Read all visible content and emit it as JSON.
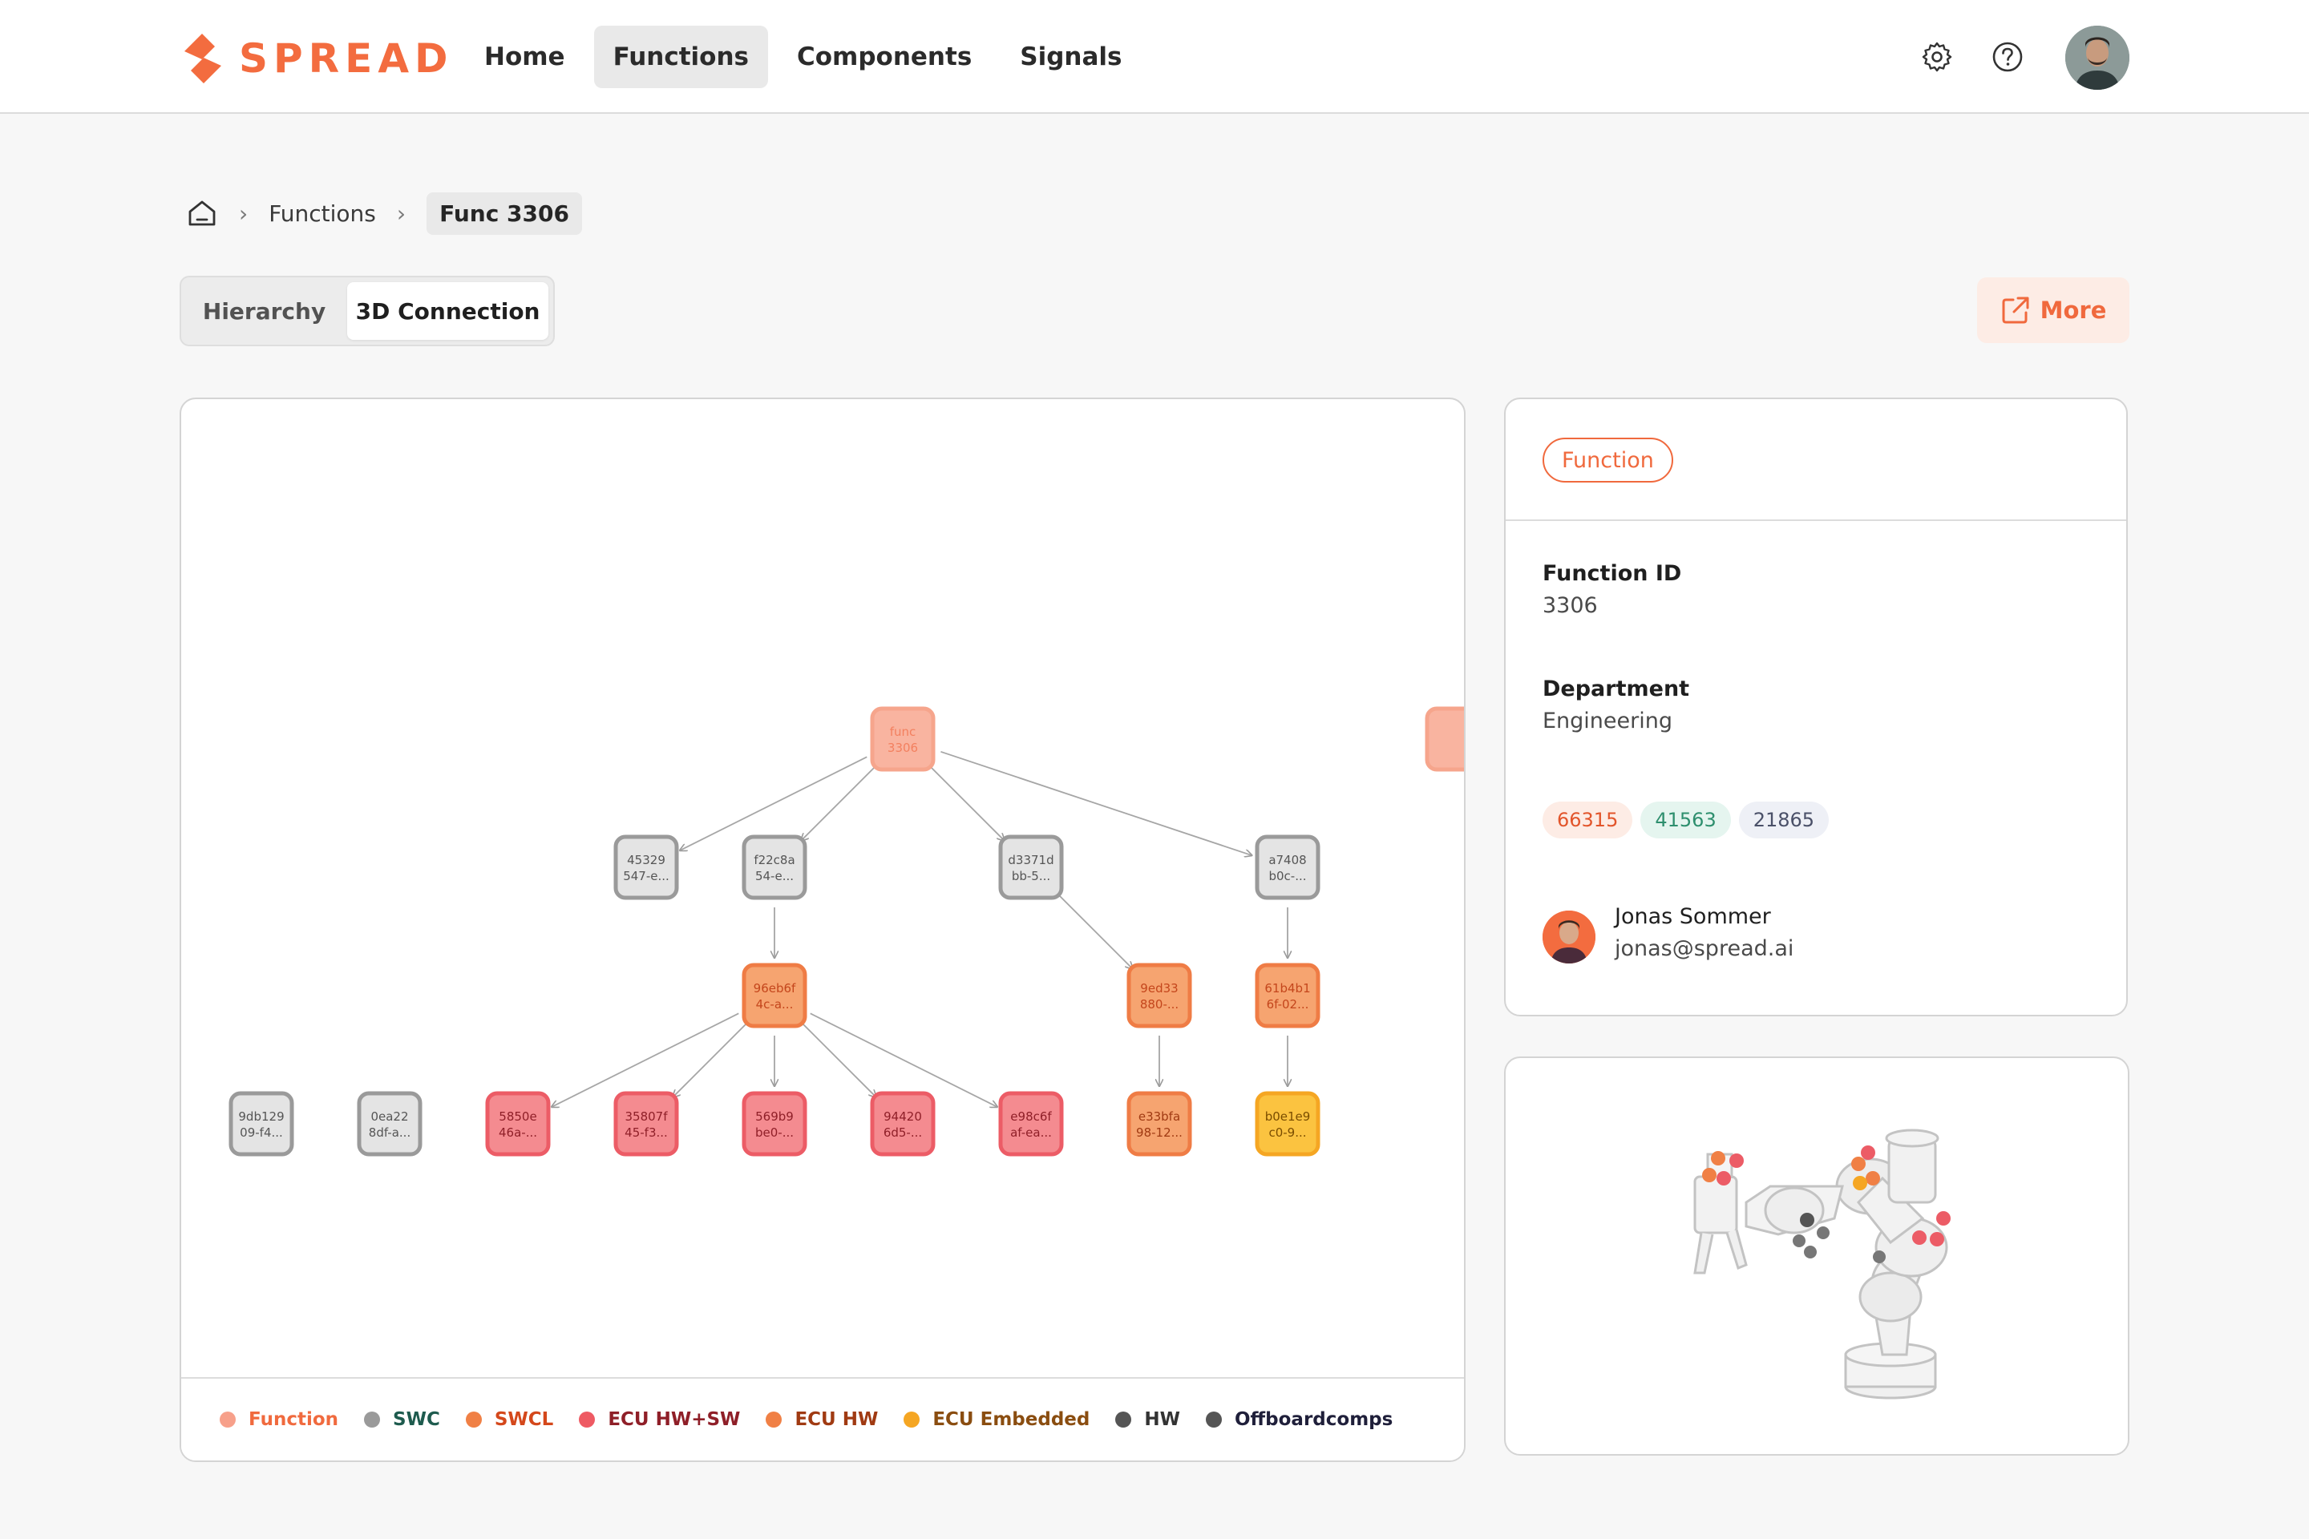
{
  "brand": {
    "name": "SPREAD",
    "accent": "#f36c3f"
  },
  "nav": {
    "items": [
      {
        "label": "Home",
        "active": false
      },
      {
        "label": "Functions",
        "active": true
      },
      {
        "label": "Components",
        "active": false
      },
      {
        "label": "Signals",
        "active": false
      }
    ],
    "icons": [
      "gear-icon",
      "help-icon",
      "user-avatar"
    ]
  },
  "breadcrumb": {
    "home_icon": "home-icon",
    "level1": "Functions",
    "current": "Func 3306"
  },
  "view_toggle": {
    "options": [
      "Hierarchy",
      "3D Connection"
    ],
    "selected": "3D Connection"
  },
  "more_button": {
    "label": "More",
    "icon": "external-link-icon"
  },
  "graph": {
    "nodes": [
      {
        "id": "n0",
        "line1": "func",
        "line2": "3306",
        "type": "Function"
      },
      {
        "id": "n1",
        "line1": "45329",
        "line2": "547-e...",
        "type": "SWC"
      },
      {
        "id": "n2",
        "line1": "f22c8a",
        "line2": "54-e...",
        "type": "SWC"
      },
      {
        "id": "n3",
        "line1": "d3371d",
        "line2": "bb-5...",
        "type": "SWC"
      },
      {
        "id": "n4",
        "line1": "a7408",
        "line2": "b0c-...",
        "type": "SWC"
      },
      {
        "id": "n5",
        "line1": "96eb6f",
        "line2": "4c-a...",
        "type": "SWCL"
      },
      {
        "id": "n6",
        "line1": "9ed33",
        "line2": "880-...",
        "type": "SWCL"
      },
      {
        "id": "n7",
        "line1": "61b4b1",
        "line2": "6f-02...",
        "type": "SWCL"
      },
      {
        "id": "n8",
        "line1": "9db129",
        "line2": "09-f4...",
        "type": "SWC"
      },
      {
        "id": "n9",
        "line1": "0ea22",
        "line2": "8df-a...",
        "type": "SWC"
      },
      {
        "id": "n10",
        "line1": "5850e",
        "line2": "46a-...",
        "type": "ECU HW+SW"
      },
      {
        "id": "n11",
        "line1": "35807f",
        "line2": "45-f3...",
        "type": "ECU HW+SW"
      },
      {
        "id": "n12",
        "line1": "569b9",
        "line2": "be0-...",
        "type": "ECU HW+SW"
      },
      {
        "id": "n13",
        "line1": "94420",
        "line2": "6d5-...",
        "type": "ECU HW+SW"
      },
      {
        "id": "n14",
        "line1": "e98c6f",
        "line2": "af-ea...",
        "type": "ECU HW+SW"
      },
      {
        "id": "n15",
        "line1": "e33bfa",
        "line2": "98-12...",
        "type": "ECU HW"
      },
      {
        "id": "n16",
        "line1": "b0e1e9",
        "line2": "c0-9...",
        "type": "ECU Embedded"
      },
      {
        "id": "n17",
        "line1": "",
        "line2": "",
        "type": "Function"
      }
    ],
    "edges": [
      [
        "n0",
        "n1"
      ],
      [
        "n0",
        "n2"
      ],
      [
        "n0",
        "n3"
      ],
      [
        "n0",
        "n4"
      ],
      [
        "n2",
        "n5"
      ],
      [
        "n3",
        "n6"
      ],
      [
        "n4",
        "n7"
      ],
      [
        "n5",
        "n10"
      ],
      [
        "n5",
        "n11"
      ],
      [
        "n5",
        "n12"
      ],
      [
        "n5",
        "n13"
      ],
      [
        "n5",
        "n14"
      ],
      [
        "n6",
        "n15"
      ],
      [
        "n7",
        "n16"
      ]
    ],
    "styles": {
      "Function": {
        "fill": "#f9b4a0",
        "stroke": "#f6a58c",
        "text": "#f3805f"
      },
      "SWC": {
        "fill": "#e4e4e4",
        "stroke": "#9a9a9a",
        "text": "#555555"
      },
      "SWCL": {
        "fill": "#f6a470",
        "stroke": "#ef7c45",
        "text": "#c4461c"
      },
      "ECU HW+SW": {
        "fill": "#f48b90",
        "stroke": "#ec5c66",
        "text": "#8f1f28"
      },
      "ECU HW": {
        "fill": "#f6a470",
        "stroke": "#ef7c45",
        "text": "#a03a12"
      },
      "ECU Embedded": {
        "fill": "#fbc340",
        "stroke": "#f5a623",
        "text": "#7a4d00"
      }
    }
  },
  "legend": [
    {
      "label": "Function",
      "dot": "#f7a08a",
      "text": "#f06a3e"
    },
    {
      "label": "SWC",
      "dot": "#9a9a9a",
      "text": "#1e5b4e"
    },
    {
      "label": "SWCL",
      "dot": "#f08045",
      "text": "#d4481b"
    },
    {
      "label": "ECU HW+SW",
      "dot": "#ee5a63",
      "text": "#8f1f28"
    },
    {
      "label": "ECU HW",
      "dot": "#f08045",
      "text": "#a03a12"
    },
    {
      "label": "ECU Embedded",
      "dot": "#f5a623",
      "text": "#8a4d10"
    },
    {
      "label": "HW",
      "dot": "#555555",
      "text": "#333333"
    },
    {
      "label": "Offboardcomps",
      "dot": "#555555",
      "text": "#1f1f3a"
    }
  ],
  "details": {
    "type_tag": "Function",
    "function_id_label": "Function ID",
    "function_id": "3306",
    "department_label": "Department",
    "department": "Engineering",
    "chips": [
      {
        "label": "66315",
        "bg": "#fdece5",
        "fg": "#e2552b"
      },
      {
        "label": "41563",
        "bg": "#e5f5ef",
        "fg": "#2e8f6e"
      },
      {
        "label": "21865",
        "bg": "#eef0f6",
        "fg": "#4a5068"
      }
    ],
    "owner": {
      "name": "Jonas Sommer",
      "email": "jonas@spread.ai"
    }
  },
  "viewer": {
    "subject": "robot-arm-3d-model"
  }
}
